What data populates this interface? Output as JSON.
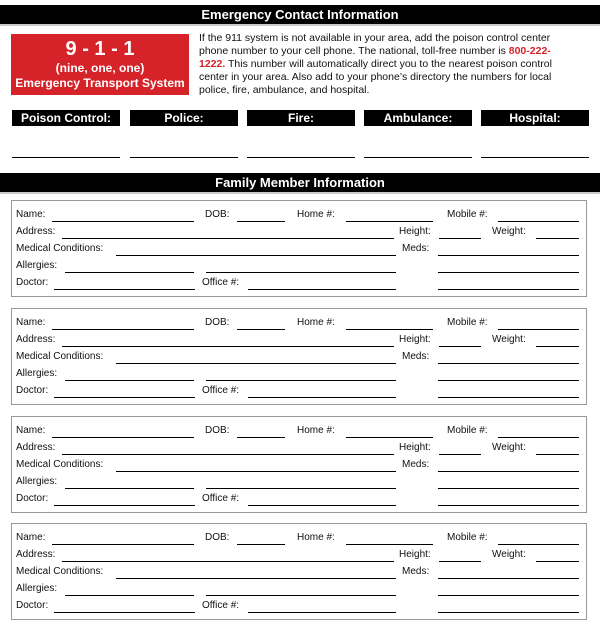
{
  "emergency": {
    "header": "Emergency Contact Information",
    "box": {
      "number": "9 - 1 - 1",
      "spelled": "(nine, one, one)",
      "system": "Emergency Transport System"
    },
    "intro_before": "If the 911 system is not available in your area, add the poison control center phone number to your cell phone. The national, toll-free number is ",
    "poison_number": "800-222-1222.",
    "intro_after": " This number will automatically direct you to the nearest poison control center in your area. Also add to your phone’s directory the numbers for local police, fire, ambulance, and hospital.",
    "contacts": [
      "Poison Control:",
      "Police:",
      "Fire:",
      "Ambulance:",
      "Hospital:"
    ],
    "accent": "#d62229"
  },
  "family": {
    "header": "Family Member Information",
    "labels": {
      "name": "Name:",
      "dob": "DOB:",
      "home": "Home #:",
      "mobile": "Mobile #:",
      "address": "Address:",
      "height": "Height:",
      "weight": "Weight:",
      "medical": "Medical Conditions:",
      "meds": "Meds:",
      "allergies": "Allergies:",
      "doctor": "Doctor:",
      "office": "Office #:"
    },
    "card_count": 4
  }
}
